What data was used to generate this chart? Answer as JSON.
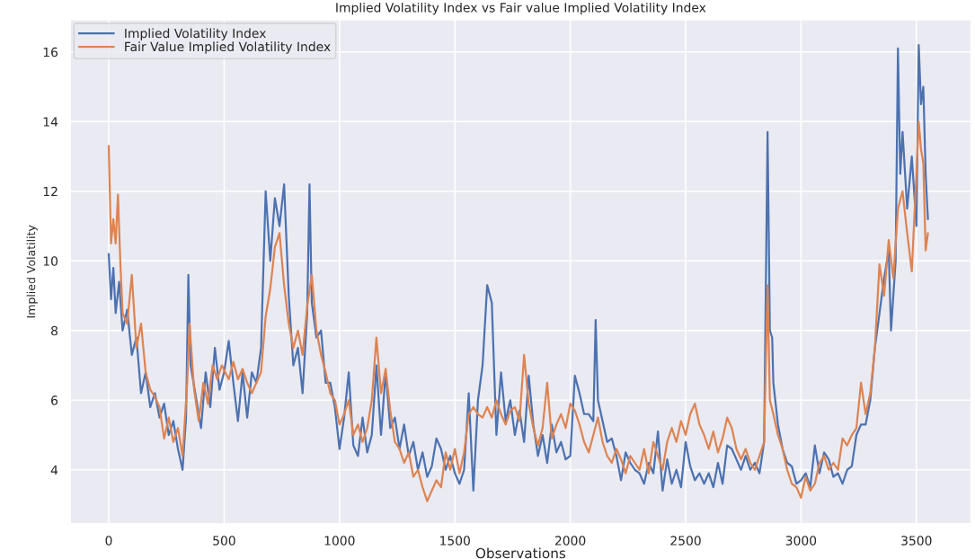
{
  "chart_data": {
    "type": "line",
    "title": "Implied Volatility Index vs Fair value Implied Volatility Index",
    "xlabel": "Observations",
    "ylabel": "Implied Volatility",
    "xlim": [
      -167,
      3737
    ],
    "ylim": [
      2.45,
      16.93
    ],
    "xticks": [
      0,
      500,
      1000,
      1500,
      2000,
      2500,
      3000,
      3500
    ],
    "yticks": [
      4,
      6,
      8,
      10,
      12,
      14,
      16
    ],
    "grid": true,
    "legend": "top left",
    "series": [
      {
        "name": "Implied Volatility Index",
        "color": "#4c72b0",
        "x": [
          0,
          10,
          20,
          30,
          45,
          60,
          80,
          100,
          120,
          140,
          160,
          180,
          200,
          220,
          240,
          260,
          280,
          300,
          320,
          335,
          345,
          355,
          380,
          400,
          420,
          440,
          460,
          480,
          500,
          520,
          540,
          560,
          580,
          600,
          620,
          640,
          660,
          680,
          700,
          720,
          740,
          760,
          780,
          800,
          820,
          840,
          860,
          870,
          880,
          900,
          920,
          940,
          960,
          980,
          1000,
          1020,
          1040,
          1060,
          1080,
          1100,
          1120,
          1140,
          1160,
          1180,
          1200,
          1220,
          1240,
          1260,
          1280,
          1300,
          1320,
          1340,
          1360,
          1380,
          1400,
          1420,
          1440,
          1460,
          1480,
          1500,
          1520,
          1540,
          1560,
          1580,
          1600,
          1620,
          1640,
          1660,
          1680,
          1700,
          1720,
          1740,
          1760,
          1780,
          1800,
          1820,
          1840,
          1860,
          1880,
          1900,
          1920,
          1940,
          1960,
          1980,
          2000,
          2020,
          2040,
          2060,
          2080,
          2100,
          2110,
          2120,
          2140,
          2160,
          2180,
          2200,
          2220,
          2240,
          2260,
          2280,
          2300,
          2320,
          2340,
          2360,
          2380,
          2400,
          2420,
          2440,
          2460,
          2480,
          2500,
          2520,
          2540,
          2560,
          2580,
          2600,
          2620,
          2640,
          2660,
          2680,
          2700,
          2720,
          2740,
          2760,
          2780,
          2800,
          2820,
          2840,
          2855,
          2865,
          2875,
          2880,
          2900,
          2920,
          2940,
          2960,
          2980,
          3000,
          3020,
          3040,
          3060,
          3080,
          3100,
          3120,
          3140,
          3160,
          3180,
          3200,
          3220,
          3240,
          3260,
          3280,
          3300,
          3320,
          3340,
          3360,
          3380,
          3390,
          3410,
          3420,
          3430,
          3440,
          3460,
          3480,
          3500,
          3510,
          3520,
          3530,
          3540,
          3550
        ],
        "values": [
          10.2,
          8.9,
          9.8,
          8.5,
          9.4,
          8.0,
          8.6,
          7.3,
          7.8,
          6.2,
          6.8,
          5.8,
          6.2,
          5.5,
          5.9,
          5.0,
          5.4,
          4.6,
          4.0,
          5.5,
          9.6,
          7.0,
          6.0,
          5.2,
          6.8,
          5.8,
          7.5,
          6.3,
          6.8,
          7.7,
          6.5,
          5.4,
          6.8,
          5.5,
          6.8,
          6.5,
          7.5,
          12.0,
          10.0,
          11.8,
          11.0,
          12.2,
          9.0,
          7.0,
          7.5,
          6.2,
          8.5,
          12.2,
          8.8,
          7.8,
          8.0,
          6.5,
          6.5,
          5.8,
          4.6,
          5.5,
          6.8,
          4.7,
          4.4,
          5.5,
          4.5,
          5.0,
          7.0,
          5.0,
          6.8,
          5.2,
          5.5,
          4.6,
          5.3,
          4.4,
          4.8,
          4.0,
          4.5,
          3.8,
          4.1,
          4.9,
          4.6,
          4.0,
          4.4,
          3.9,
          3.6,
          4.0,
          6.2,
          3.4,
          6.0,
          7.0,
          9.3,
          8.8,
          5.0,
          6.8,
          5.4,
          6.0,
          5.0,
          5.7,
          4.8,
          6.7,
          5.3,
          4.4,
          5.0,
          4.2,
          5.3,
          4.5,
          4.8,
          4.3,
          4.4,
          6.7,
          6.2,
          5.6,
          5.6,
          5.4,
          8.3,
          6.0,
          5.4,
          4.8,
          4.9,
          4.4,
          3.7,
          4.5,
          4.2,
          4.0,
          3.9,
          3.6,
          4.2,
          3.9,
          5.1,
          3.4,
          4.3,
          3.6,
          4.0,
          3.5,
          4.8,
          4.1,
          3.7,
          3.9,
          3.6,
          3.9,
          3.5,
          4.2,
          3.6,
          4.7,
          4.6,
          4.3,
          4.0,
          4.4,
          4.0,
          4.2,
          3.9,
          4.8,
          13.7,
          8.0,
          7.8,
          6.5,
          5.3,
          4.6,
          4.2,
          4.1,
          3.6,
          3.7,
          3.9,
          3.5,
          4.7,
          3.9,
          4.5,
          4.3,
          3.8,
          3.9,
          3.6,
          4.0,
          4.1,
          5.0,
          5.3,
          5.3,
          6.0,
          7.5,
          8.5,
          9.5,
          10.3,
          8.0,
          10.0,
          16.1,
          12.5,
          13.7,
          11.5,
          13.0,
          11.0,
          16.2,
          14.5,
          15.0,
          12.5,
          11.2
        ]
      },
      {
        "name": "Fair Value Implied Volatility Index",
        "color": "#dd8452",
        "x": [
          0,
          10,
          20,
          30,
          40,
          50,
          60,
          80,
          100,
          120,
          140,
          160,
          180,
          200,
          220,
          240,
          260,
          280,
          300,
          320,
          340,
          350,
          370,
          390,
          410,
          430,
          450,
          470,
          490,
          520,
          540,
          560,
          580,
          600,
          620,
          640,
          660,
          680,
          700,
          720,
          740,
          760,
          780,
          800,
          820,
          840,
          860,
          880,
          900,
          920,
          940,
          960,
          980,
          1000,
          1020,
          1040,
          1060,
          1080,
          1100,
          1120,
          1140,
          1160,
          1180,
          1200,
          1220,
          1240,
          1260,
          1280,
          1300,
          1320,
          1340,
          1360,
          1380,
          1400,
          1420,
          1440,
          1460,
          1480,
          1500,
          1520,
          1540,
          1560,
          1580,
          1600,
          1620,
          1640,
          1660,
          1680,
          1700,
          1720,
          1740,
          1760,
          1780,
          1800,
          1820,
          1840,
          1860,
          1880,
          1900,
          1920,
          1940,
          1960,
          1980,
          2000,
          2020,
          2040,
          2060,
          2080,
          2100,
          2120,
          2140,
          2160,
          2180,
          2200,
          2220,
          2240,
          2260,
          2280,
          2300,
          2320,
          2340,
          2360,
          2380,
          2400,
          2420,
          2440,
          2460,
          2480,
          2500,
          2520,
          2540,
          2560,
          2580,
          2600,
          2620,
          2640,
          2660,
          2680,
          2700,
          2720,
          2740,
          2760,
          2780,
          2800,
          2820,
          2840,
          2855,
          2865,
          2880,
          2900,
          2920,
          2940,
          2960,
          2980,
          3000,
          3020,
          3040,
          3060,
          3080,
          3100,
          3120,
          3140,
          3160,
          3180,
          3200,
          3220,
          3240,
          3260,
          3280,
          3300,
          3320,
          3340,
          3360,
          3380,
          3400,
          3420,
          3440,
          3460,
          3480,
          3500,
          3510,
          3520,
          3530,
          3540,
          3550
        ],
        "values": [
          13.3,
          10.5,
          11.2,
          10.5,
          11.9,
          10.0,
          8.5,
          8.2,
          9.6,
          7.5,
          8.2,
          6.8,
          6.3,
          6.1,
          5.8,
          4.9,
          5.5,
          4.8,
          5.2,
          4.4,
          6.5,
          8.2,
          6.3,
          5.4,
          6.5,
          5.9,
          7.0,
          6.6,
          7.0,
          6.6,
          7.1,
          6.6,
          6.9,
          6.5,
          6.2,
          6.5,
          6.8,
          8.4,
          9.2,
          10.4,
          10.8,
          9.3,
          8.2,
          7.5,
          8.0,
          7.3,
          8.7,
          9.6,
          8.0,
          7.3,
          6.8,
          6.2,
          6.0,
          5.3,
          5.6,
          6.0,
          5.0,
          5.3,
          4.8,
          5.2,
          6.0,
          7.8,
          6.2,
          6.9,
          5.7,
          4.8,
          4.6,
          4.2,
          4.5,
          3.8,
          4.0,
          3.5,
          3.1,
          3.4,
          3.7,
          3.5,
          4.5,
          4.0,
          4.6,
          3.9,
          4.5,
          5.6,
          5.8,
          5.6,
          5.5,
          5.8,
          5.5,
          6.0,
          5.6,
          5.3,
          5.7,
          5.8,
          5.4,
          7.3,
          5.9,
          5.2,
          4.7,
          5.2,
          6.5,
          4.9,
          5.3,
          5.6,
          5.2,
          5.9,
          5.7,
          5.3,
          4.8,
          4.5,
          5.0,
          5.5,
          4.8,
          4.4,
          4.2,
          4.6,
          4.3,
          3.9,
          4.4,
          4.2,
          4.0,
          4.6,
          3.9,
          4.8,
          4.4,
          4.0,
          4.8,
          5.2,
          4.8,
          5.4,
          5.0,
          5.6,
          5.9,
          5.3,
          5.0,
          4.6,
          5.1,
          4.5,
          4.9,
          5.5,
          5.2,
          4.6,
          4.3,
          4.6,
          4.2,
          4.0,
          4.4,
          4.8,
          9.3,
          6.0,
          5.6,
          5.0,
          4.6,
          4.0,
          3.6,
          3.5,
          3.2,
          3.8,
          3.4,
          3.6,
          4.2,
          4.4,
          4.0,
          4.2,
          4.0,
          4.9,
          4.7,
          5.0,
          5.2,
          6.5,
          5.6,
          6.2,
          7.5,
          9.9,
          9.0,
          10.6,
          9.5,
          11.5,
          12.0,
          10.8,
          9.7,
          12.5,
          14.0,
          13.2,
          12.8,
          10.3,
          10.8
        ]
      }
    ]
  }
}
